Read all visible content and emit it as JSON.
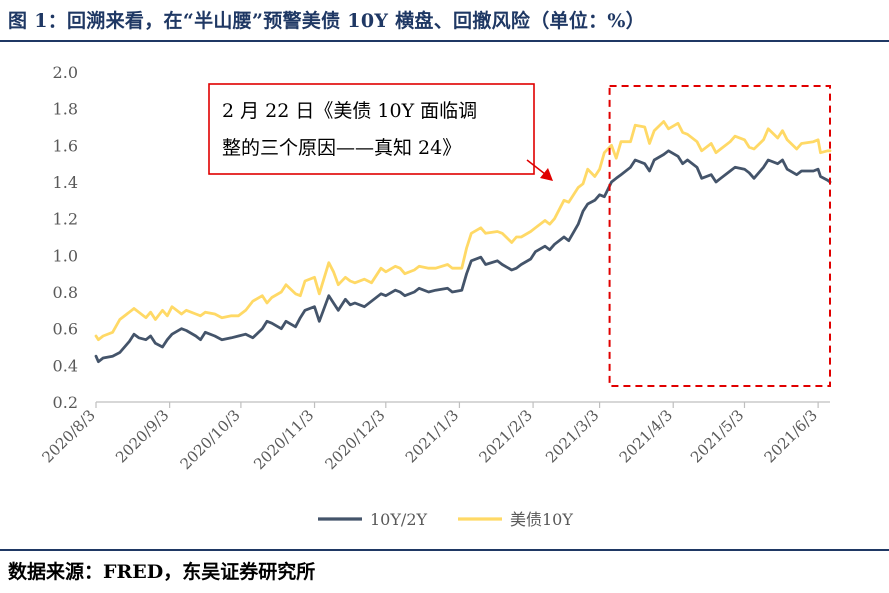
{
  "figure": {
    "title": "图 1：回溯来看，在“半山腰”预警美债 10Y 横盘、回撤风险（单位：%）",
    "source": "数据来源：FRED，东吴证券研究所"
  },
  "annotation": {
    "line1": "2 月 22 日《美债 10Y 面临调",
    "line2": "整的三个原因——真知 24》"
  },
  "chart_data": {
    "type": "line",
    "title": "",
    "xlabel": "",
    "ylabel": "",
    "ylim": [
      0.2,
      2.0
    ],
    "yticks": [
      "0.2",
      "0.4",
      "0.6",
      "0.8",
      "1.0",
      "1.2",
      "1.4",
      "1.6",
      "1.8",
      "2.0"
    ],
    "xticks": [
      "2020/8/3",
      "2020/9/3",
      "2020/10/3",
      "2020/11/3",
      "2020/12/3",
      "2021/1/3",
      "2021/2/3",
      "2021/3/3",
      "2021/4/3",
      "2021/5/3",
      "2021/6/3"
    ],
    "xlim": [
      "2020/8/3",
      "2021/6/8"
    ],
    "grid": false,
    "legend": "bottom-center",
    "series": [
      {
        "name": "10Y/2Y",
        "color": "#44546A",
        "points": [
          [
            "2020/8/3",
            0.45
          ],
          [
            "2020/8/4",
            0.42
          ],
          [
            "2020/8/6",
            0.44
          ],
          [
            "2020/8/10",
            0.45
          ],
          [
            "2020/8/13",
            0.47
          ],
          [
            "2020/8/17",
            0.53
          ],
          [
            "2020/8/19",
            0.57
          ],
          [
            "2020/8/21",
            0.55
          ],
          [
            "2020/8/24",
            0.54
          ],
          [
            "2020/8/26",
            0.56
          ],
          [
            "2020/8/28",
            0.52
          ],
          [
            "2020/8/31",
            0.5
          ],
          [
            "2020/9/2",
            0.54
          ],
          [
            "2020/9/4",
            0.57
          ],
          [
            "2020/9/8",
            0.6
          ],
          [
            "2020/9/10",
            0.59
          ],
          [
            "2020/9/14",
            0.56
          ],
          [
            "2020/9/16",
            0.54
          ],
          [
            "2020/9/18",
            0.58
          ],
          [
            "2020/9/22",
            0.56
          ],
          [
            "2020/9/25",
            0.54
          ],
          [
            "2020/9/29",
            0.55
          ],
          [
            "2020/10/2",
            0.56
          ],
          [
            "2020/10/5",
            0.57
          ],
          [
            "2020/10/8",
            0.55
          ],
          [
            "2020/10/12",
            0.6
          ],
          [
            "2020/10/14",
            0.64
          ],
          [
            "2020/10/16",
            0.63
          ],
          [
            "2020/10/20",
            0.6
          ],
          [
            "2020/10/22",
            0.64
          ],
          [
            "2020/10/26",
            0.61
          ],
          [
            "2020/10/28",
            0.66
          ],
          [
            "2020/10/30",
            0.7
          ],
          [
            "2020/11/3",
            0.72
          ],
          [
            "2020/11/5",
            0.64
          ],
          [
            "2020/11/9",
            0.78
          ],
          [
            "2020/11/11",
            0.74
          ],
          [
            "2020/11/13",
            0.7
          ],
          [
            "2020/11/16",
            0.76
          ],
          [
            "2020/11/18",
            0.73
          ],
          [
            "2020/11/20",
            0.74
          ],
          [
            "2020/11/24",
            0.72
          ],
          [
            "2020/11/27",
            0.75
          ],
          [
            "2020/12/1",
            0.79
          ],
          [
            "2020/12/3",
            0.78
          ],
          [
            "2020/12/7",
            0.81
          ],
          [
            "2020/12/9",
            0.8
          ],
          [
            "2020/12/11",
            0.78
          ],
          [
            "2020/12/15",
            0.8
          ],
          [
            "2020/12/17",
            0.82
          ],
          [
            "2020/12/21",
            0.8
          ],
          [
            "2020/12/24",
            0.81
          ],
          [
            "2020/12/29",
            0.82
          ],
          [
            "2020/12/31",
            0.8
          ],
          [
            "2021/1/4",
            0.81
          ],
          [
            "2021/1/6",
            0.9
          ],
          [
            "2021/1/8",
            0.97
          ],
          [
            "2021/1/12",
            0.99
          ],
          [
            "2021/1/14",
            0.95
          ],
          [
            "2021/1/19",
            0.97
          ],
          [
            "2021/1/21",
            0.95
          ],
          [
            "2021/1/25",
            0.92
          ],
          [
            "2021/1/27",
            0.93
          ],
          [
            "2021/1/29",
            0.95
          ],
          [
            "2021/2/2",
            0.98
          ],
          [
            "2021/2/4",
            1.02
          ],
          [
            "2021/2/8",
            1.05
          ],
          [
            "2021/2/10",
            1.03
          ],
          [
            "2021/2/12",
            1.06
          ],
          [
            "2021/2/16",
            1.1
          ],
          [
            "2021/2/18",
            1.08
          ],
          [
            "2021/2/22",
            1.17
          ],
          [
            "2021/2/24",
            1.24
          ],
          [
            "2021/2/26",
            1.28
          ],
          [
            "2021/3/1",
            1.3
          ],
          [
            "2021/3/3",
            1.33
          ],
          [
            "2021/3/5",
            1.32
          ],
          [
            "2021/3/8",
            1.4
          ],
          [
            "2021/3/10",
            1.42
          ],
          [
            "2021/3/12",
            1.44
          ],
          [
            "2021/3/16",
            1.48
          ],
          [
            "2021/3/18",
            1.52
          ],
          [
            "2021/3/22",
            1.5
          ],
          [
            "2021/3/24",
            1.46
          ],
          [
            "2021/3/26",
            1.52
          ],
          [
            "2021/3/30",
            1.55
          ],
          [
            "2021/4/1",
            1.57
          ],
          [
            "2021/4/5",
            1.54
          ],
          [
            "2021/4/7",
            1.5
          ],
          [
            "2021/4/9",
            1.52
          ],
          [
            "2021/4/13",
            1.48
          ],
          [
            "2021/4/15",
            1.42
          ],
          [
            "2021/4/19",
            1.44
          ],
          [
            "2021/4/21",
            1.4
          ],
          [
            "2021/4/23",
            1.42
          ],
          [
            "2021/4/27",
            1.46
          ],
          [
            "2021/4/29",
            1.48
          ],
          [
            "2021/5/3",
            1.47
          ],
          [
            "2021/5/5",
            1.45
          ],
          [
            "2021/5/7",
            1.42
          ],
          [
            "2021/5/11",
            1.48
          ],
          [
            "2021/5/13",
            1.52
          ],
          [
            "2021/5/17",
            1.5
          ],
          [
            "2021/5/19",
            1.52
          ],
          [
            "2021/5/21",
            1.47
          ],
          [
            "2021/5/25",
            1.44
          ],
          [
            "2021/5/27",
            1.46
          ],
          [
            "2021/6/1",
            1.46
          ],
          [
            "2021/6/3",
            1.47
          ],
          [
            "2021/6/4",
            1.43
          ],
          [
            "2021/6/7",
            1.41
          ],
          [
            "2021/6/8",
            1.4
          ]
        ]
      },
      {
        "name": "美债10Y",
        "color": "#FFD966",
        "points": [
          [
            "2020/8/3",
            0.56
          ],
          [
            "2020/8/4",
            0.54
          ],
          [
            "2020/8/6",
            0.56
          ],
          [
            "2020/8/10",
            0.58
          ],
          [
            "2020/8/13",
            0.65
          ],
          [
            "2020/8/17",
            0.69
          ],
          [
            "2020/8/19",
            0.71
          ],
          [
            "2020/8/21",
            0.69
          ],
          [
            "2020/8/24",
            0.66
          ],
          [
            "2020/8/26",
            0.69
          ],
          [
            "2020/8/28",
            0.65
          ],
          [
            "2020/8/31",
            0.7
          ],
          [
            "2020/9/2",
            0.67
          ],
          [
            "2020/9/4",
            0.72
          ],
          [
            "2020/9/8",
            0.68
          ],
          [
            "2020/9/10",
            0.7
          ],
          [
            "2020/9/14",
            0.68
          ],
          [
            "2020/9/16",
            0.67
          ],
          [
            "2020/9/18",
            0.69
          ],
          [
            "2020/9/22",
            0.68
          ],
          [
            "2020/9/25",
            0.66
          ],
          [
            "2020/9/29",
            0.67
          ],
          [
            "2020/10/2",
            0.67
          ],
          [
            "2020/10/5",
            0.7
          ],
          [
            "2020/10/8",
            0.75
          ],
          [
            "2020/10/12",
            0.78
          ],
          [
            "2020/10/14",
            0.74
          ],
          [
            "2020/10/16",
            0.77
          ],
          [
            "2020/10/20",
            0.8
          ],
          [
            "2020/10/22",
            0.84
          ],
          [
            "2020/10/26",
            0.79
          ],
          [
            "2020/10/28",
            0.78
          ],
          [
            "2020/10/30",
            0.86
          ],
          [
            "2020/11/3",
            0.88
          ],
          [
            "2020/11/5",
            0.79
          ],
          [
            "2020/11/9",
            0.96
          ],
          [
            "2020/11/11",
            0.91
          ],
          [
            "2020/11/13",
            0.84
          ],
          [
            "2020/11/16",
            0.88
          ],
          [
            "2020/11/18",
            0.86
          ],
          [
            "2020/11/20",
            0.85
          ],
          [
            "2020/11/24",
            0.87
          ],
          [
            "2020/11/27",
            0.85
          ],
          [
            "2020/12/1",
            0.93
          ],
          [
            "2020/12/3",
            0.91
          ],
          [
            "2020/12/7",
            0.94
          ],
          [
            "2020/12/9",
            0.93
          ],
          [
            "2020/12/11",
            0.9
          ],
          [
            "2020/12/15",
            0.92
          ],
          [
            "2020/12/17",
            0.94
          ],
          [
            "2020/12/21",
            0.93
          ],
          [
            "2020/12/24",
            0.93
          ],
          [
            "2020/12/29",
            0.95
          ],
          [
            "2020/12/31",
            0.93
          ],
          [
            "2021/1/4",
            0.93
          ],
          [
            "2021/1/6",
            1.04
          ],
          [
            "2021/1/8",
            1.12
          ],
          [
            "2021/1/12",
            1.15
          ],
          [
            "2021/1/14",
            1.12
          ],
          [
            "2021/1/19",
            1.13
          ],
          [
            "2021/1/21",
            1.12
          ],
          [
            "2021/1/25",
            1.07
          ],
          [
            "2021/1/27",
            1.1
          ],
          [
            "2021/1/29",
            1.1
          ],
          [
            "2021/2/2",
            1.13
          ],
          [
            "2021/2/4",
            1.15
          ],
          [
            "2021/2/8",
            1.19
          ],
          [
            "2021/2/10",
            1.17
          ],
          [
            "2021/2/12",
            1.2
          ],
          [
            "2021/2/16",
            1.3
          ],
          [
            "2021/2/18",
            1.29
          ],
          [
            "2021/2/22",
            1.37
          ],
          [
            "2021/2/24",
            1.39
          ],
          [
            "2021/2/26",
            1.47
          ],
          [
            "2021/3/1",
            1.43
          ],
          [
            "2021/3/3",
            1.47
          ],
          [
            "2021/3/5",
            1.56
          ],
          [
            "2021/3/8",
            1.6
          ],
          [
            "2021/3/10",
            1.53
          ],
          [
            "2021/3/12",
            1.62
          ],
          [
            "2021/3/16",
            1.62
          ],
          [
            "2021/3/18",
            1.71
          ],
          [
            "2021/3/22",
            1.7
          ],
          [
            "2021/3/24",
            1.61
          ],
          [
            "2021/3/26",
            1.68
          ],
          [
            "2021/3/30",
            1.73
          ],
          [
            "2021/4/1",
            1.69
          ],
          [
            "2021/4/5",
            1.72
          ],
          [
            "2021/4/7",
            1.67
          ],
          [
            "2021/4/9",
            1.66
          ],
          [
            "2021/4/13",
            1.62
          ],
          [
            "2021/4/15",
            1.57
          ],
          [
            "2021/4/19",
            1.61
          ],
          [
            "2021/4/21",
            1.56
          ],
          [
            "2021/4/23",
            1.58
          ],
          [
            "2021/4/27",
            1.62
          ],
          [
            "2021/4/29",
            1.65
          ],
          [
            "2021/5/3",
            1.63
          ],
          [
            "2021/5/5",
            1.59
          ],
          [
            "2021/5/7",
            1.58
          ],
          [
            "2021/5/11",
            1.63
          ],
          [
            "2021/5/13",
            1.69
          ],
          [
            "2021/5/17",
            1.64
          ],
          [
            "2021/5/19",
            1.68
          ],
          [
            "2021/5/21",
            1.63
          ],
          [
            "2021/5/25",
            1.58
          ],
          [
            "2021/5/27",
            1.61
          ],
          [
            "2021/6/1",
            1.62
          ],
          [
            "2021/6/3",
            1.63
          ],
          [
            "2021/6/4",
            1.56
          ],
          [
            "2021/6/7",
            1.57
          ],
          [
            "2021/6/8",
            1.57
          ]
        ]
      }
    ]
  }
}
